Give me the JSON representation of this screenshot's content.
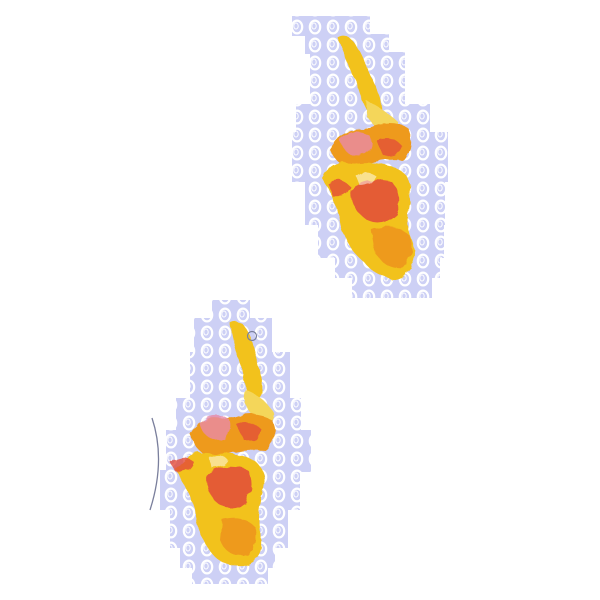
{
  "scene": {
    "background": "#ffffff",
    "colors": {
      "cell_fill": "#cdd0f5",
      "cell_ring": "#ffffff",
      "blob_yellow": "#f2c21c",
      "blob_orange": "#ee9a1e",
      "blob_red": "#e24a3a",
      "blob_pink": "#e98aa6",
      "outline": "#7a7f9c"
    },
    "objects": [
      {
        "name": "upper-specimen"
      },
      {
        "name": "lower-specimen"
      }
    ]
  }
}
